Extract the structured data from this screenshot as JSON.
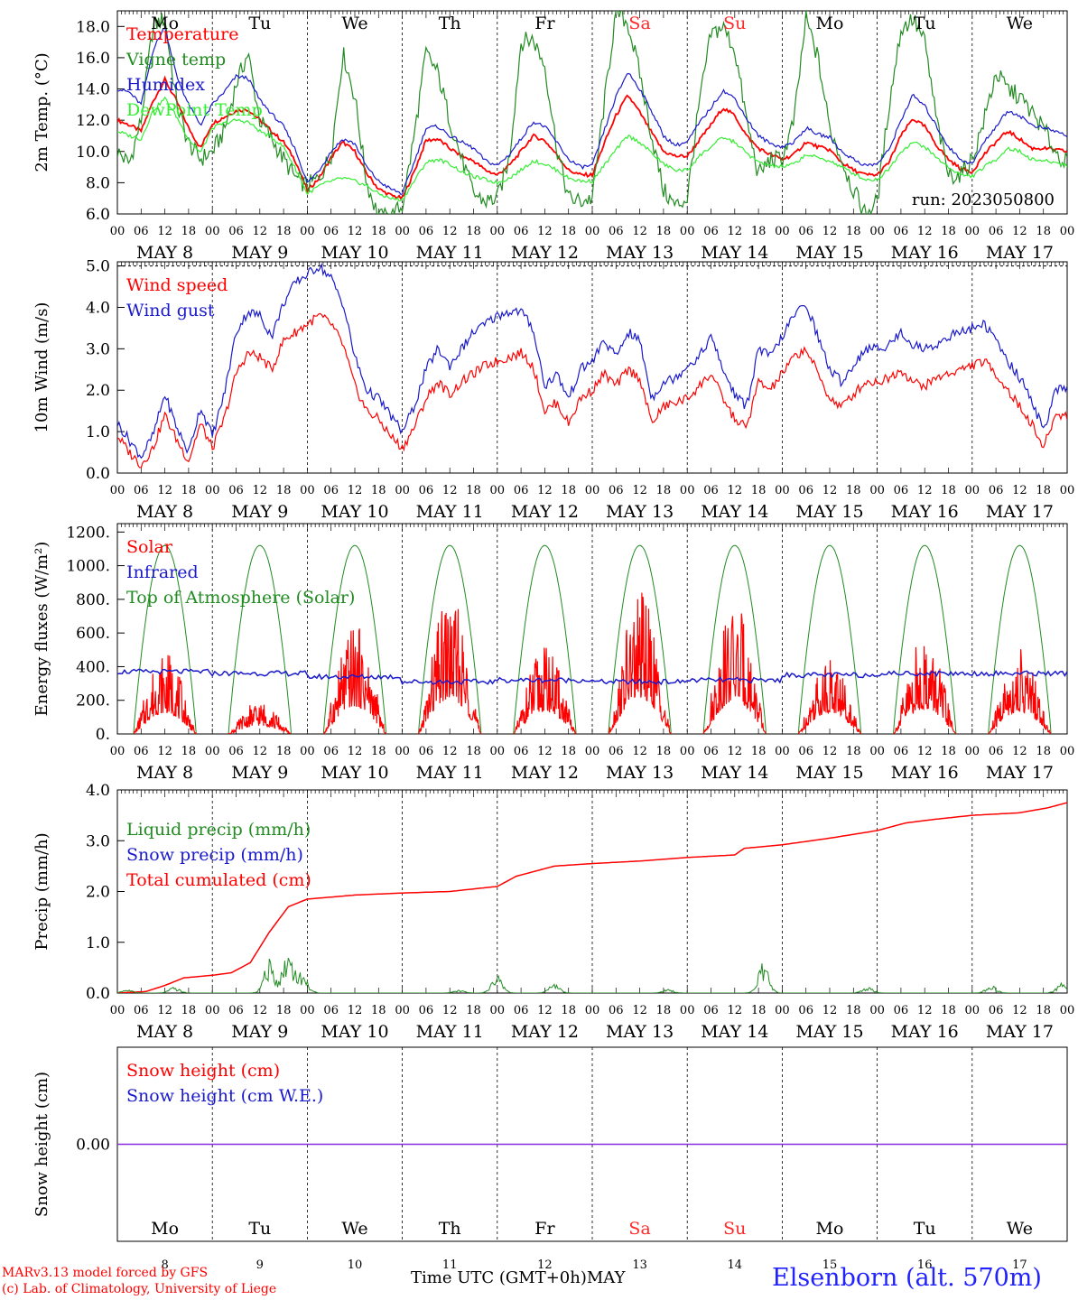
{
  "colors": {
    "red": "#ff0000",
    "blue": "#1a1acc",
    "green": "#228b22",
    "lime": "#33ee33",
    "axis": "#000000",
    "weekend": "#ff2a2a"
  },
  "days": [
    {
      "dow": "Mo",
      "date": "MAY  8",
      "day": "8",
      "weekend": false
    },
    {
      "dow": "Tu",
      "date": "MAY  9",
      "day": "9",
      "weekend": false
    },
    {
      "dow": "We",
      "date": "MAY 10",
      "day": "10",
      "weekend": false
    },
    {
      "dow": "Th",
      "date": "MAY 11",
      "day": "11",
      "weekend": false
    },
    {
      "dow": "Fr",
      "date": "MAY 12",
      "day": "12",
      "weekend": false
    },
    {
      "dow": "Sa",
      "date": "MAY 13",
      "day": "13",
      "weekend": true
    },
    {
      "dow": "Su",
      "date": "MAY 14",
      "day": "14",
      "weekend": true
    },
    {
      "dow": "Mo",
      "date": "MAY 15",
      "day": "15",
      "weekend": false
    },
    {
      "dow": "Tu",
      "date": "MAY 16",
      "day": "16",
      "weekend": false
    },
    {
      "dow": "We",
      "date": "MAY 17",
      "day": "17",
      "weekend": false
    }
  ],
  "hour_ticks": [
    "00",
    "06",
    "12",
    "18"
  ],
  "chart_data": [
    {
      "id": "temp",
      "type": "line",
      "ylabel": "2m Temp. (°C)",
      "ylim": [
        6,
        19
      ],
      "ytick_values": [
        6,
        8,
        10,
        12,
        14,
        16,
        18
      ],
      "ytick_labels": [
        "6.0",
        "8.0",
        "10.0",
        "12.0",
        "14.0",
        "16.0",
        "18.0"
      ],
      "note": "run: 2023050800",
      "x_days": [
        0,
        0.125,
        0.25,
        0.375,
        0.5,
        0.625,
        0.75,
        0.875,
        1,
        1.125,
        1.25,
        1.375,
        1.5,
        1.625,
        1.75,
        1.875,
        2,
        2.125,
        2.25,
        2.375,
        2.5,
        2.625,
        2.75,
        2.875,
        3,
        3.125,
        3.25,
        3.375,
        3.5,
        3.625,
        3.75,
        3.875,
        4,
        4.125,
        4.25,
        4.375,
        4.5,
        4.625,
        4.75,
        4.875,
        5,
        5.125,
        5.25,
        5.375,
        5.5,
        5.625,
        5.75,
        5.875,
        6,
        6.125,
        6.25,
        6.375,
        6.5,
        6.625,
        6.75,
        6.875,
        7,
        7.125,
        7.25,
        7.375,
        7.5,
        7.625,
        7.75,
        7.875,
        8,
        8.125,
        8.25,
        8.375,
        8.5,
        8.625,
        8.75,
        8.875,
        9,
        9.125,
        9.25,
        9.375,
        9.5,
        9.625,
        9.75,
        9.875,
        10
      ],
      "series": [
        {
          "name": "Temperature",
          "color": "#ff0000",
          "values": [
            12,
            11.7,
            11.3,
            13.2,
            14.6,
            13.2,
            11.5,
            10.2,
            11.8,
            12.2,
            12.6,
            12.7,
            12,
            11.3,
            10.6,
            9.4,
            7.5,
            8.3,
            9.6,
            10.6,
            10,
            8.6,
            7.6,
            7.2,
            7,
            8.7,
            10.7,
            10.8,
            10.2,
            9.7,
            9.4,
            8.8,
            8.5,
            9.1,
            10,
            11,
            10.7,
            9.8,
            8.8,
            8.5,
            8.5,
            10.5,
            12.3,
            13.6,
            12.5,
            11.2,
            10,
            9.7,
            9.7,
            10.7,
            11.7,
            12.8,
            12.3,
            11,
            10.2,
            9.8,
            9.5,
            9.8,
            10.6,
            10.3,
            10.1,
            9.3,
            8.8,
            8.5,
            8.5,
            9.3,
            11,
            12.1,
            11.6,
            10.4,
            9.5,
            8.9,
            8.7,
            9.8,
            10.6,
            11.3,
            10.8,
            10.2,
            10.2,
            10.1,
            10
          ]
        },
        {
          "name": "Vigne temp",
          "color": "#228b22",
          "values": [
            10,
            9.2,
            12,
            18,
            18.5,
            13,
            10.5,
            9.5,
            10,
            11.3,
            14.3,
            16.3,
            12,
            10.8,
            9.5,
            8.3,
            7.8,
            8.3,
            9.8,
            16.3,
            13.5,
            8,
            5.8,
            5.8,
            6.5,
            11,
            16.3,
            15,
            12,
            9.5,
            7.3,
            6.8,
            7,
            9.5,
            17,
            17.2,
            15.5,
            10.3,
            7,
            6.8,
            7,
            13,
            19,
            18.2,
            15,
            11,
            7.5,
            6.5,
            7,
            13,
            17.5,
            18,
            16.5,
            12,
            8.5,
            9.5,
            9.5,
            12,
            18.5,
            16,
            11.5,
            9.5,
            7.5,
            6,
            6.8,
            13,
            17.8,
            18.5,
            17,
            12,
            8.5,
            8.5,
            9.5,
            12,
            15,
            14,
            13.5,
            12.5,
            11.5,
            10,
            9.2
          ]
        },
        {
          "name": "Humidex",
          "color": "#1a1acc",
          "values": [
            14,
            13.8,
            13,
            16.5,
            18,
            14.8,
            13,
            11.7,
            13,
            13.8,
            14.8,
            14.7,
            13.3,
            12.4,
            11.6,
            10.1,
            8,
            8.8,
            10,
            10.8,
            10.5,
            9,
            8.1,
            7.6,
            7.3,
            9.3,
            11.5,
            11.6,
            11,
            10.6,
            10.2,
            9.4,
            9.1,
            9.8,
            10.8,
            11.9,
            11.6,
            10.6,
            9.5,
            9,
            9.1,
            11.3,
            13.5,
            15.1,
            14,
            12.6,
            11,
            10.4,
            10.6,
            11.8,
            12.8,
            13.9,
            13.4,
            12.1,
            11,
            10.5,
            10.3,
            10.6,
            11.5,
            11.1,
            10.9,
            10,
            9.5,
            9.1,
            9.2,
            10.1,
            12,
            13.6,
            12.9,
            11.6,
            10.3,
            9.5,
            9.2,
            10.6,
            11.6,
            12.6,
            12.3,
            11.7,
            11.5,
            11.3,
            11
          ]
        },
        {
          "name": "DewPoint Temp",
          "color": "#33ee33",
          "values": [
            11.3,
            11,
            10.8,
            12.6,
            13.4,
            12.2,
            10.8,
            9.9,
            11.5,
            11.8,
            12,
            11.9,
            11.3,
            10.9,
            10.3,
            8.9,
            7.3,
            7.8,
            8.1,
            8.3,
            8.1,
            7.8,
            7.3,
            7,
            6.9,
            8.1,
            9.3,
            9.5,
            9.2,
            8.7,
            8.4,
            8.2,
            8,
            8.3,
            8.8,
            9.4,
            9.2,
            8.8,
            8.3,
            8.1,
            8.1,
            9.1,
            10.1,
            11,
            10.6,
            9.9,
            9.2,
            8.8,
            8.8,
            9.7,
            10.3,
            10.9,
            10.6,
            9.9,
            9.3,
            9.1,
            9,
            9.2,
            9.8,
            9.6,
            9.4,
            9,
            8.6,
            8.2,
            8.2,
            8.9,
            10,
            10.6,
            10.3,
            9.6,
            9,
            8.5,
            8.4,
            9,
            9.5,
            10.2,
            10,
            9.5,
            9.4,
            9.3,
            9.1
          ]
        }
      ]
    },
    {
      "id": "wind",
      "type": "line",
      "ylabel": "10m Wind (m/s)",
      "ylim": [
        0,
        5.1
      ],
      "ytick_values": [
        0,
        1,
        2,
        3,
        4,
        5
      ],
      "ytick_labels": [
        "0.0",
        "1.0",
        "2.0",
        "3.0",
        "4.0",
        "5.0"
      ],
      "dashed_y": 5,
      "x_days": [
        0,
        0.125,
        0.25,
        0.375,
        0.5,
        0.625,
        0.75,
        0.875,
        1,
        1.125,
        1.25,
        1.375,
        1.5,
        1.625,
        1.75,
        1.875,
        2,
        2.125,
        2.25,
        2.375,
        2.5,
        2.625,
        2.75,
        2.875,
        3,
        3.125,
        3.25,
        3.375,
        3.5,
        3.625,
        3.75,
        3.875,
        4,
        4.125,
        4.25,
        4.375,
        4.5,
        4.625,
        4.75,
        4.875,
        5,
        5.125,
        5.25,
        5.375,
        5.5,
        5.625,
        5.75,
        5.875,
        6,
        6.125,
        6.25,
        6.375,
        6.5,
        6.625,
        6.75,
        6.875,
        7,
        7.125,
        7.25,
        7.375,
        7.5,
        7.625,
        7.75,
        7.875,
        8,
        8.125,
        8.25,
        8.375,
        8.5,
        8.625,
        8.75,
        8.875,
        9,
        9.125,
        9.25,
        9.375,
        9.5,
        9.625,
        9.75,
        9.875,
        10
      ],
      "series": [
        {
          "name": "Wind speed",
          "color": "#ff0000",
          "values": [
            0.9,
            0.5,
            0.2,
            0.6,
            1.4,
            0.8,
            0.3,
            1.2,
            0.6,
            1.3,
            2.4,
            2.9,
            2.8,
            2.5,
            3.2,
            3.4,
            3.6,
            3.8,
            3.6,
            3.1,
            2.1,
            1.5,
            1.3,
            0.9,
            0.6,
            1.1,
            1.8,
            2.2,
            1.9,
            2.2,
            2.4,
            2.6,
            2.7,
            2.8,
            2.9,
            2.6,
            1.5,
            1.7,
            1.2,
            1.8,
            2.0,
            2.4,
            2.1,
            2.5,
            2.3,
            1.2,
            1.6,
            1.7,
            1.8,
            2.1,
            2.4,
            1.8,
            1.3,
            1.1,
            2.2,
            2.0,
            2.4,
            2.8,
            3.0,
            2.4,
            1.8,
            1.6,
            1.9,
            2.2,
            2.2,
            2.3,
            2.5,
            2.2,
            2.1,
            2.3,
            2.4,
            2.5,
            2.6,
            2.7,
            2.4,
            2.0,
            1.6,
            1.2,
            0.6,
            1.4,
            1.4
          ]
        },
        {
          "name": "Wind gust",
          "color": "#1a1acc",
          "values": [
            1.2,
            0.8,
            0.4,
            0.9,
            1.9,
            1.1,
            0.5,
            1.6,
            0.9,
            1.9,
            3.4,
            3.9,
            3.8,
            3.3,
            4.1,
            4.6,
            4.8,
            5.0,
            4.7,
            4.1,
            2.8,
            2.0,
            1.8,
            1.4,
            1.0,
            1.6,
            2.5,
            3.0,
            2.6,
            3.0,
            3.4,
            3.6,
            3.8,
            3.9,
            3.9,
            3.5,
            2.1,
            2.4,
            1.8,
            2.5,
            2.7,
            3.2,
            2.8,
            3.4,
            3.2,
            1.8,
            2.2,
            2.3,
            2.6,
            2.8,
            3.3,
            2.5,
            1.9,
            1.6,
            3.0,
            2.8,
            3.3,
            3.8,
            4.1,
            3.3,
            2.5,
            2.2,
            2.6,
            3.0,
            3.0,
            3.1,
            3.4,
            3.1,
            3.0,
            3.1,
            3.3,
            3.4,
            3.5,
            3.6,
            3.2,
            2.7,
            2.3,
            1.8,
            1.0,
            2.0,
            2.0
          ]
        }
      ]
    },
    {
      "id": "energy",
      "type": "line",
      "ylabel": "Energy fluxes (W/m²)",
      "ylim": [
        0,
        1250
      ],
      "ytick_values": [
        0,
        200,
        400,
        600,
        800,
        1000,
        1200
      ],
      "ytick_labels": [
        "0.",
        "200.",
        "400.",
        "600.",
        "800.",
        "1000.",
        "1200."
      ],
      "toa_peak": 1120,
      "toa_daylight": [
        0.17,
        0.83
      ],
      "solar_peaks": [
        500,
        200,
        650,
        830,
        530,
        850,
        790,
        500,
        590,
        520
      ],
      "infrared_by_day": [
        370,
        360,
        340,
        310,
        320,
        310,
        320,
        350,
        360,
        360
      ],
      "series": [
        {
          "name": "Solar",
          "color": "#ff0000"
        },
        {
          "name": "Infrared",
          "color": "#1a1acc"
        },
        {
          "name": "Top of Atmosphere (Solar)",
          "color": "#228b22"
        }
      ]
    },
    {
      "id": "precip",
      "type": "line",
      "ylabel": "Precip (mm/h)",
      "ylim": [
        0,
        4
      ],
      "ytick_values": [
        0,
        1,
        2,
        3,
        4
      ],
      "ytick_labels": [
        "0.0",
        "1.0",
        "2.0",
        "3.0",
        "4.0"
      ],
      "cumulated": {
        "x_days": [
          0,
          0.3,
          0.5,
          0.7,
          1,
          1.2,
          1.4,
          1.6,
          1.8,
          2,
          2.5,
          3,
          3.5,
          4,
          4.2,
          4.6,
          5,
          5.5,
          6,
          6.5,
          6.6,
          7,
          7.5,
          8,
          8.3,
          8.6,
          9,
          9.5,
          9.8,
          10
        ],
        "values": [
          0,
          0.03,
          0.15,
          0.3,
          0.35,
          0.4,
          0.6,
          1.2,
          1.7,
          1.85,
          1.93,
          1.97,
          2.0,
          2.1,
          2.3,
          2.5,
          2.55,
          2.6,
          2.67,
          2.72,
          2.85,
          2.92,
          3.05,
          3.2,
          3.35,
          3.42,
          3.5,
          3.55,
          3.65,
          3.75
        ]
      },
      "liquid_bursts": [
        [
          0.1,
          0.05
        ],
        [
          0.6,
          0.08
        ],
        [
          1.6,
          0.45
        ],
        [
          1.8,
          0.6
        ],
        [
          1.95,
          0.25
        ],
        [
          3.6,
          0.04
        ],
        [
          4.0,
          0.25
        ],
        [
          4.6,
          0.12
        ],
        [
          5.8,
          0.05
        ],
        [
          6.8,
          0.4
        ],
        [
          7.9,
          0.08
        ],
        [
          9.2,
          0.1
        ],
        [
          9.95,
          0.15
        ]
      ],
      "series": [
        {
          "name": "Liquid precip (mm/h)",
          "color": "#228b22"
        },
        {
          "name": "Snow precip (mm/h)",
          "color": "#1a1acc"
        },
        {
          "name": "Total cumulated (cm)",
          "color": "#ff0000"
        }
      ]
    },
    {
      "id": "snow",
      "type": "line",
      "ylabel": "Snow height (cm)",
      "ylim": [
        -1,
        1
      ],
      "ytick_values": [
        0
      ],
      "ytick_labels": [
        "0.00"
      ],
      "series": [
        {
          "name": "Snow height (cm)",
          "color": "#ff0000",
          "values": [
            0,
            0
          ]
        },
        {
          "name": "Snow height (cm W.E.)",
          "color": "#1a1acc",
          "values": [
            0,
            0
          ]
        }
      ]
    }
  ],
  "footer": {
    "model": "MARv3.13 model forced by GFS",
    "credit": "(c) Lab. of Climatology, University of Liege",
    "xaxis_title": "Time UTC (GMT+0h)MAY",
    "station": "Elsenborn (alt. 570m)"
  }
}
